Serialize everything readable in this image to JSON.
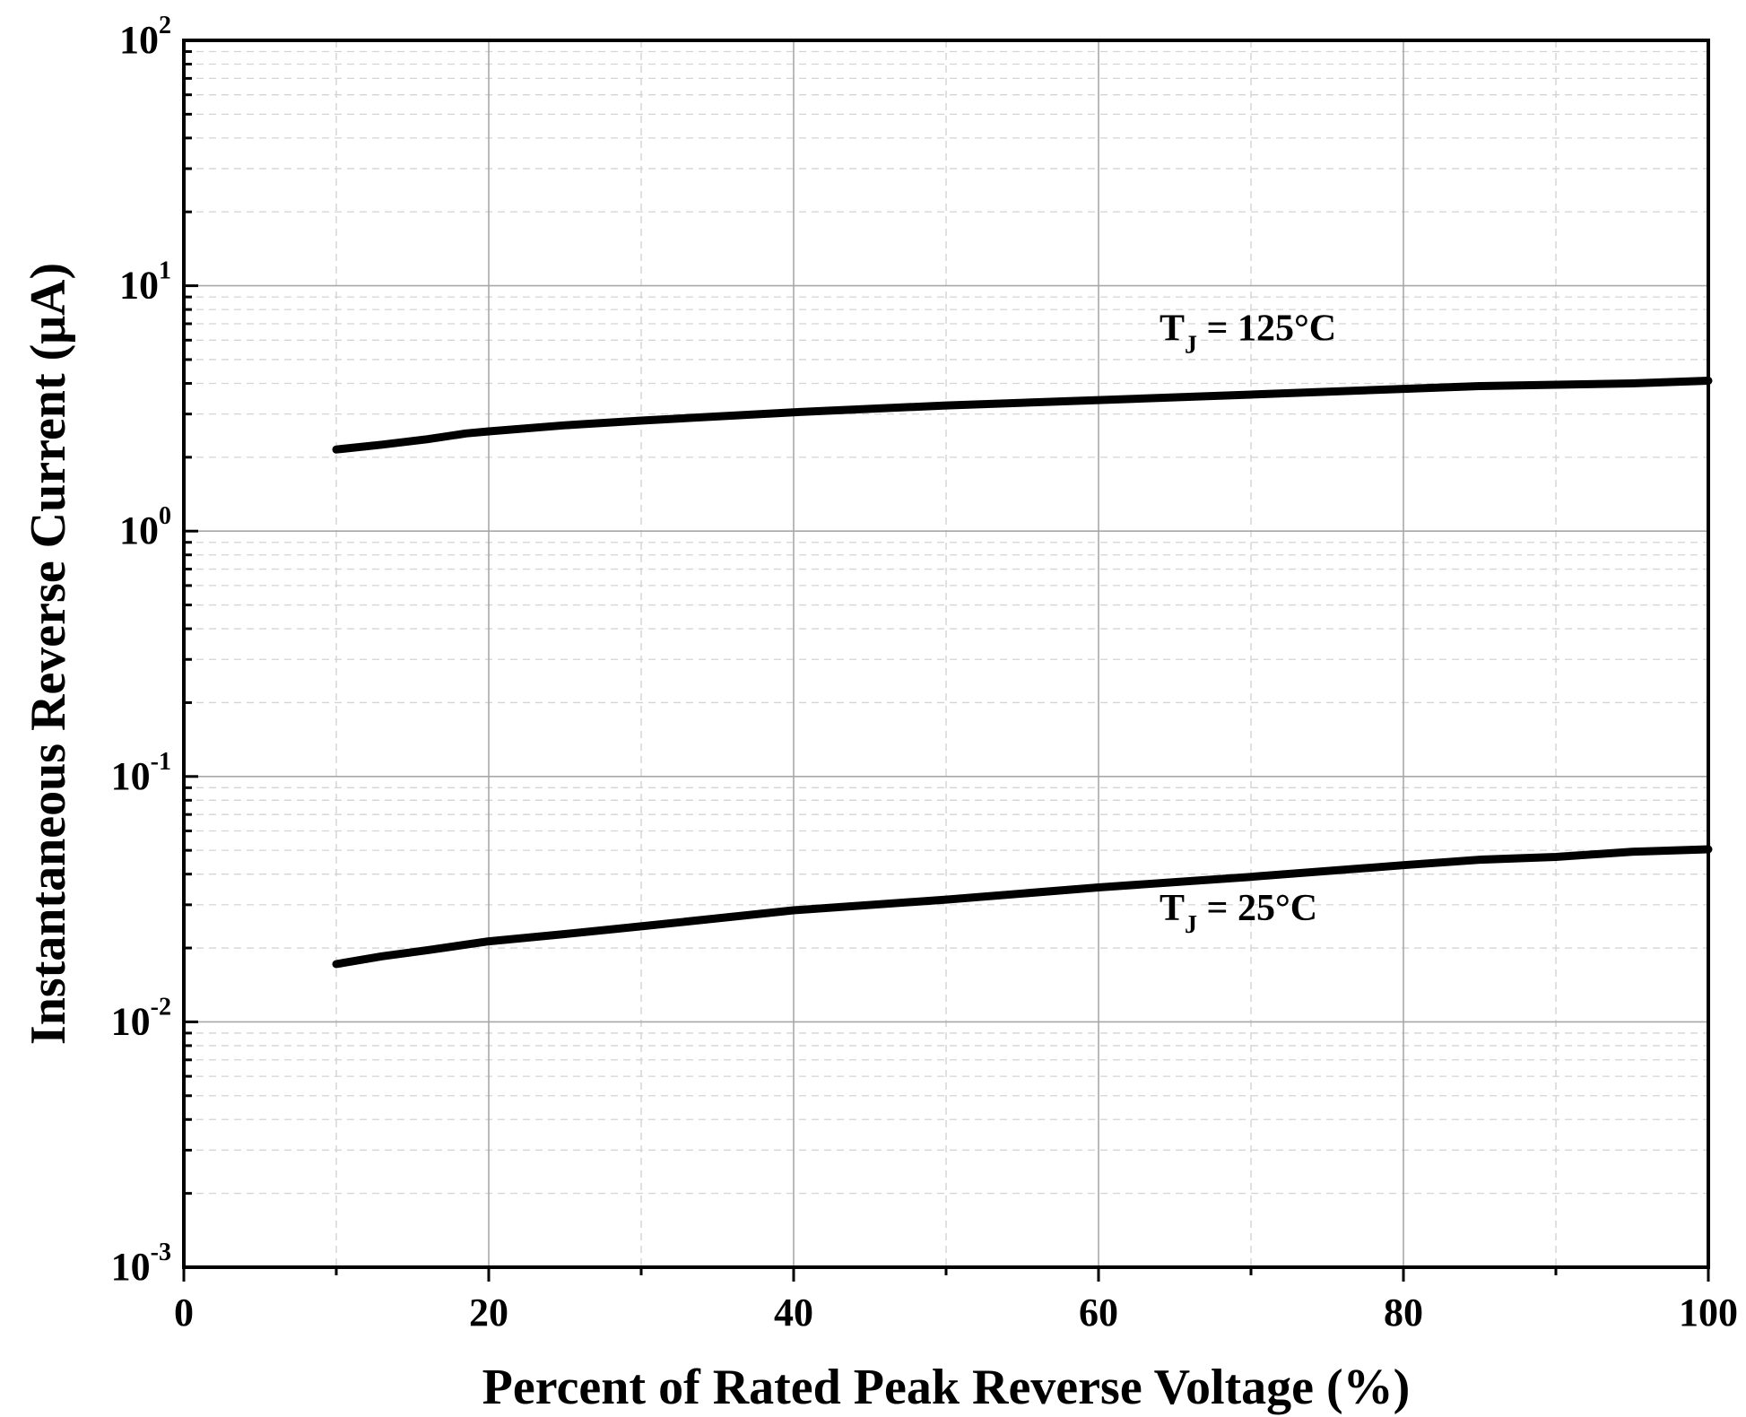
{
  "chart_data": {
    "type": "line",
    "title": "",
    "xlabel": "Percent of Rated Peak Reverse Voltage (%)",
    "ylabel": "Instantaneous Reverse Current (μA)",
    "xlim": [
      0,
      100
    ],
    "ylim": [
      0.001,
      100
    ],
    "yscale": "log",
    "grid": true,
    "x_ticks": [
      {
        "value": 0,
        "label": "0"
      },
      {
        "value": 20,
        "label": "20"
      },
      {
        "value": 40,
        "label": "40"
      },
      {
        "value": 60,
        "label": "60"
      },
      {
        "value": 80,
        "label": "80"
      },
      {
        "value": 100,
        "label": "100"
      }
    ],
    "y_ticks": [
      {
        "value": 0.001,
        "base": "10",
        "exp": "-3"
      },
      {
        "value": 0.01,
        "base": "10",
        "exp": "-2"
      },
      {
        "value": 0.1,
        "base": "10",
        "exp": "-1"
      },
      {
        "value": 1,
        "base": "10",
        "exp": "0"
      },
      {
        "value": 10,
        "base": "10",
        "exp": "1"
      },
      {
        "value": 100,
        "base": "10",
        "exp": "2"
      }
    ],
    "series": [
      {
        "name": "TJ = 125°C",
        "label_main": "T",
        "label_sub": "J",
        "label_rest": " = 125°C",
        "label_at": [
          64,
          6.0
        ],
        "x": [
          10,
          13,
          16,
          18.5,
          20,
          25,
          30,
          40,
          50,
          60,
          70,
          80,
          85,
          90,
          95,
          100
        ],
        "values": [
          2.15,
          2.25,
          2.37,
          2.5,
          2.55,
          2.7,
          2.82,
          3.05,
          3.25,
          3.42,
          3.6,
          3.8,
          3.9,
          3.95,
          4.0,
          4.1
        ]
      },
      {
        "name": "TJ = 25°C",
        "label_main": "T",
        "label_sub": "J",
        "label_rest": " = 25°C",
        "label_at": [
          64,
          0.026
        ],
        "x": [
          10,
          13,
          16,
          20,
          25,
          30,
          40,
          50,
          60,
          70,
          80,
          85,
          90,
          95,
          100
        ],
        "values": [
          0.0172,
          0.0185,
          0.0196,
          0.0213,
          0.0228,
          0.0245,
          0.0285,
          0.0315,
          0.0353,
          0.039,
          0.0435,
          0.0458,
          0.047,
          0.0493,
          0.0505
        ]
      }
    ]
  }
}
